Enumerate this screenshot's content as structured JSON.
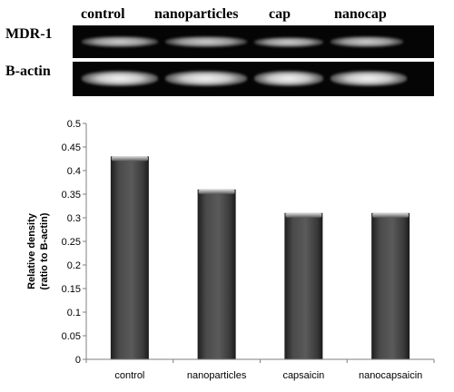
{
  "gel": {
    "lanes": [
      "control",
      "nanoparticles",
      "cap",
      "nanocap"
    ],
    "rows": [
      "MDR-1",
      "B-actin"
    ]
  },
  "chart_data": {
    "type": "bar",
    "categories": [
      "control",
      "nanoparticles",
      "capsaicin",
      "nanocapsaicin"
    ],
    "values": [
      0.43,
      0.36,
      0.31,
      0.31
    ],
    "ylabel_line1": "Relative density",
    "ylabel_line2": "(ratio to B-actin)",
    "ylim": [
      0,
      0.5
    ],
    "yticks": [
      "0",
      "0.05",
      "0.1",
      "0.15",
      "0.2",
      "0.25",
      "0.3",
      "0.35",
      "0.4",
      "0.45",
      "0.5"
    ],
    "grid": false,
    "bar_color": "#3a3a3a"
  }
}
